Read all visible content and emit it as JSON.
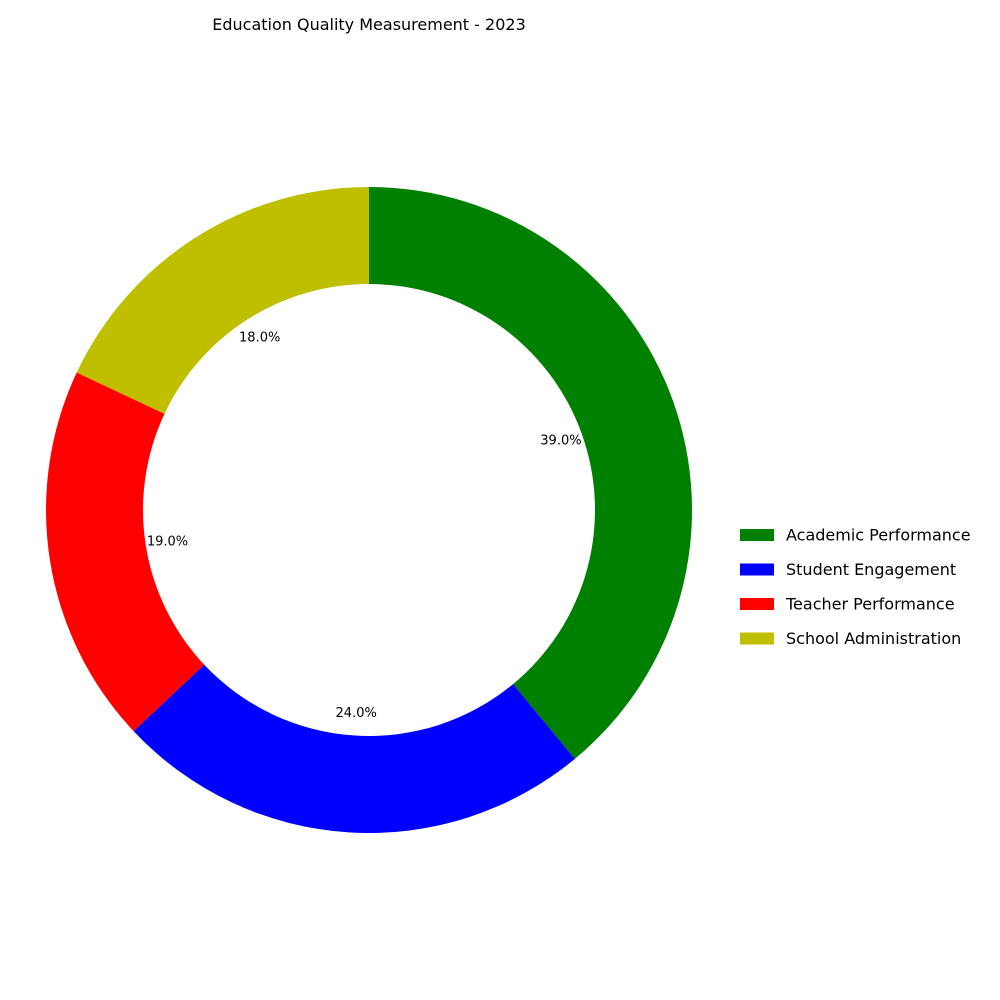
{
  "chart_data": {
    "type": "pie",
    "variant": "donut",
    "title": "Education Quality Measurement - 2023",
    "categories": [
      "Academic Performance",
      "Student Engagement",
      "Teacher Performance",
      "School Administration"
    ],
    "values": [
      39.0,
      24.0,
      19.0,
      18.0
    ],
    "labels": [
      "39.0%",
      "24.0%",
      "19.0%",
      "18.0%"
    ],
    "colors": [
      "#008000",
      "#0000ff",
      "#ff0000",
      "#bfbf00"
    ],
    "legend_position": "right",
    "start_angle": "top",
    "direction": "clockwise"
  }
}
